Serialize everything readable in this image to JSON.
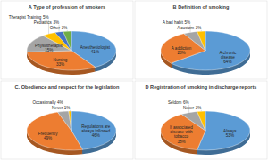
{
  "chart_data": [
    {
      "type": "pie",
      "title": "A Type of profession of smokers",
      "categories": [
        "Anesthesiologist",
        "Nursing",
        "Physiotherapist",
        "Therapist Training",
        "Pediatrics",
        "Other"
      ],
      "values": [
        41,
        33,
        15,
        5,
        3,
        3
      ],
      "value_labels": [
        "41%",
        "33%",
        "15%",
        "5%",
        "3%",
        "3%"
      ],
      "colors": [
        "#5b9bd5",
        "#ed7d31",
        "#a5a5a5",
        "#ffc000",
        "#4472c4",
        "#70ad47"
      ],
      "data_labels": true
    },
    {
      "type": "pie",
      "title": "B Definition of smoking",
      "categories": [
        "A chronic disease",
        "A addiction",
        "A bad habit",
        "A custom"
      ],
      "values": [
        64,
        28,
        5,
        3
      ],
      "value_labels": [
        "64%",
        "28%",
        "5%",
        "3%"
      ],
      "colors": [
        "#5b9bd5",
        "#ed7d31",
        "#a5a5a5",
        "#ffc000"
      ],
      "data_labels": true
    },
    {
      "type": "pie",
      "title": "C. Obedience and respect  for the legislation",
      "categories": [
        "Regulations are always followed",
        "Frequently",
        "Occasionally",
        "Never"
      ],
      "values": [
        46,
        49,
        4,
        1
      ],
      "value_labels": [
        "46%",
        "49%",
        "4%",
        "1%"
      ],
      "colors": [
        "#5b9bd5",
        "#ed7d31",
        "#a5a5a5",
        "#ffc000"
      ],
      "data_labels": true
    },
    {
      "type": "pie",
      "title": "D Registration of smoking in discharge reports",
      "categories": [
        "Always",
        "If associated disease with tobacco",
        "Seldom",
        "Never"
      ],
      "values": [
        53,
        38,
        6,
        3
      ],
      "value_labels": [
        "53%",
        "38%",
        "6%",
        "3%"
      ],
      "colors": [
        "#5b9bd5",
        "#ed7d31",
        "#a5a5a5",
        "#ffc000"
      ],
      "data_labels": true
    }
  ]
}
